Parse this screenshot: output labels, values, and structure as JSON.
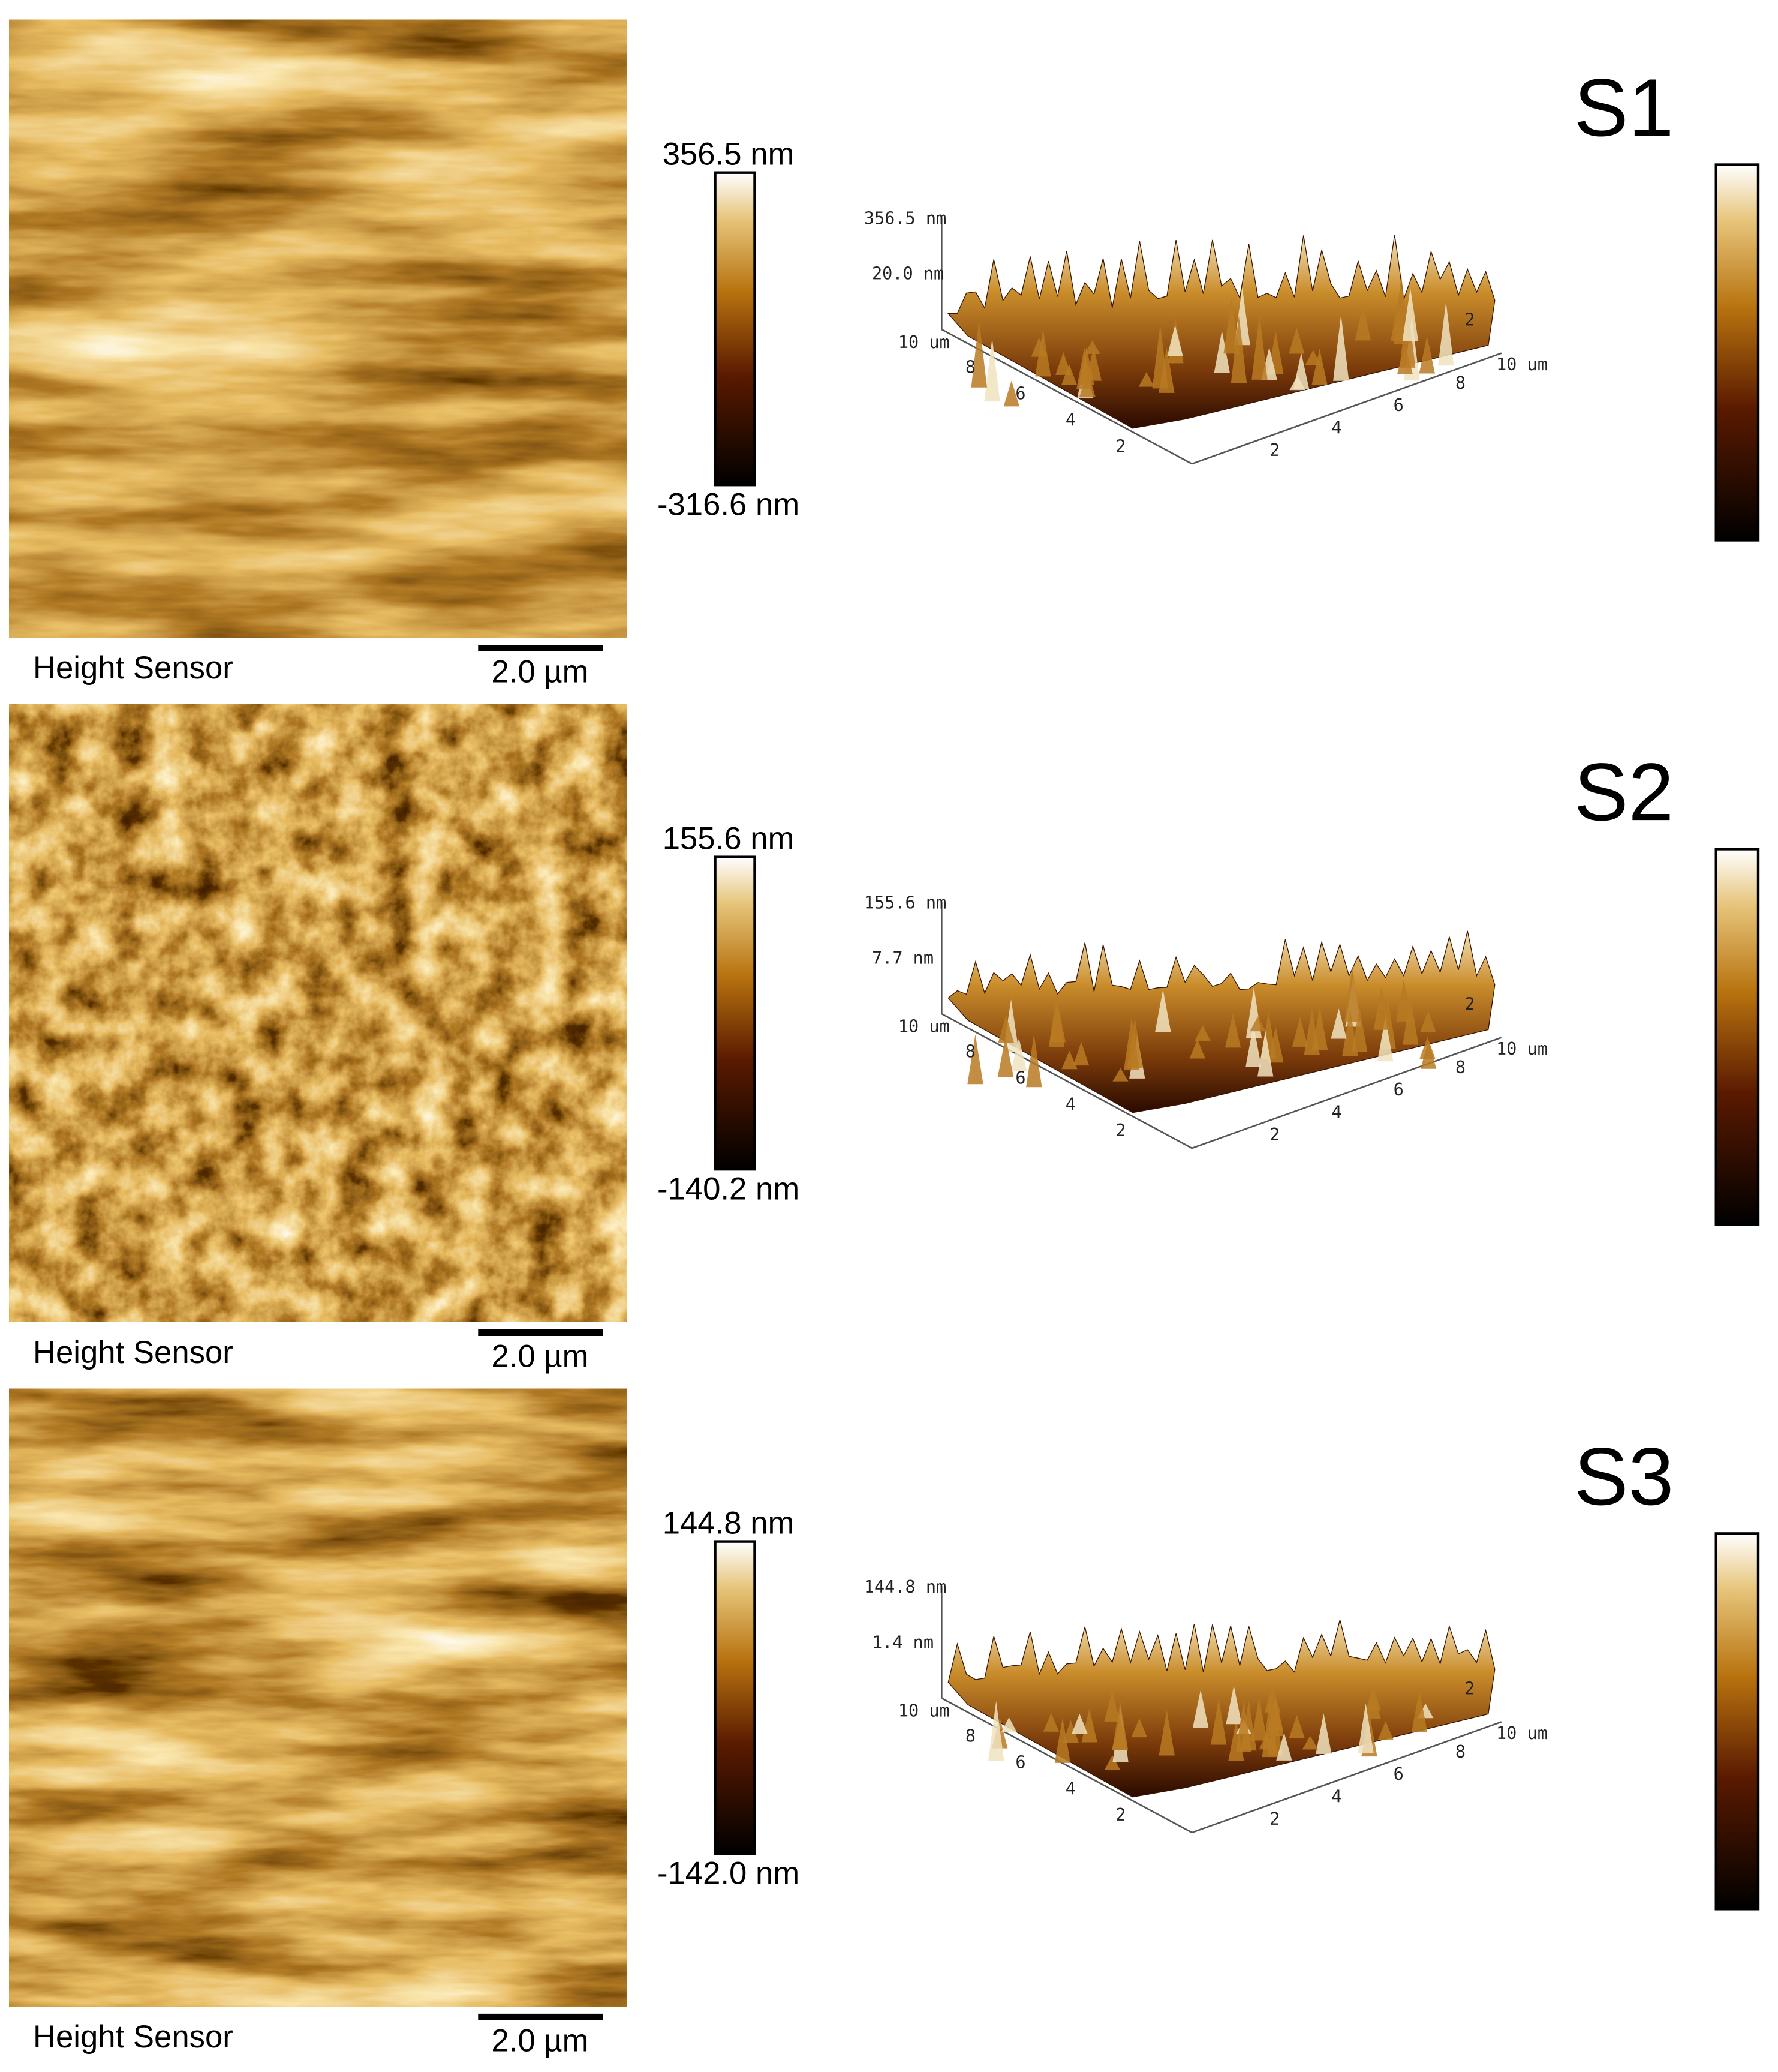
{
  "panels": [
    {
      "label": "S1",
      "colorbar_max": "356.5 nm",
      "colorbar_min": "-316.6 nm",
      "caption": "Height Sensor",
      "scale_bar": "2.0 µm",
      "plot3d": {
        "z_max": "356.5 nm",
        "z_mid": "20.0 nm",
        "y_end": "10 um",
        "x_end": "10 um",
        "y_ticks": [
          "8",
          "6",
          "4",
          "2"
        ],
        "x_ticks": [
          "2",
          "4",
          "6",
          "8"
        ],
        "back_tick": "2"
      }
    },
    {
      "label": "S2",
      "colorbar_max": "155.6 nm",
      "colorbar_min": "-140.2 nm",
      "caption": "Height Sensor",
      "scale_bar": "2.0 µm",
      "plot3d": {
        "z_max": "155.6 nm",
        "z_mid": "7.7 nm",
        "y_end": "10 um",
        "x_end": "10 um",
        "y_ticks": [
          "8",
          "6",
          "4",
          "2"
        ],
        "x_ticks": [
          "2",
          "4",
          "6",
          "8"
        ],
        "back_tick": "2"
      }
    },
    {
      "label": "S3",
      "colorbar_max": "144.8 nm",
      "colorbar_min": "-142.0 nm",
      "caption": "Height Sensor",
      "scale_bar": "2.0 µm",
      "plot3d": {
        "z_max": "144.8 nm",
        "z_mid": "1.4 nm",
        "y_end": "10 um",
        "x_end": "10 um",
        "y_ticks": [
          "8",
          "6",
          "4",
          "2"
        ],
        "x_ticks": [
          "2",
          "4",
          "6",
          "8"
        ],
        "back_tick": "2"
      }
    }
  ]
}
